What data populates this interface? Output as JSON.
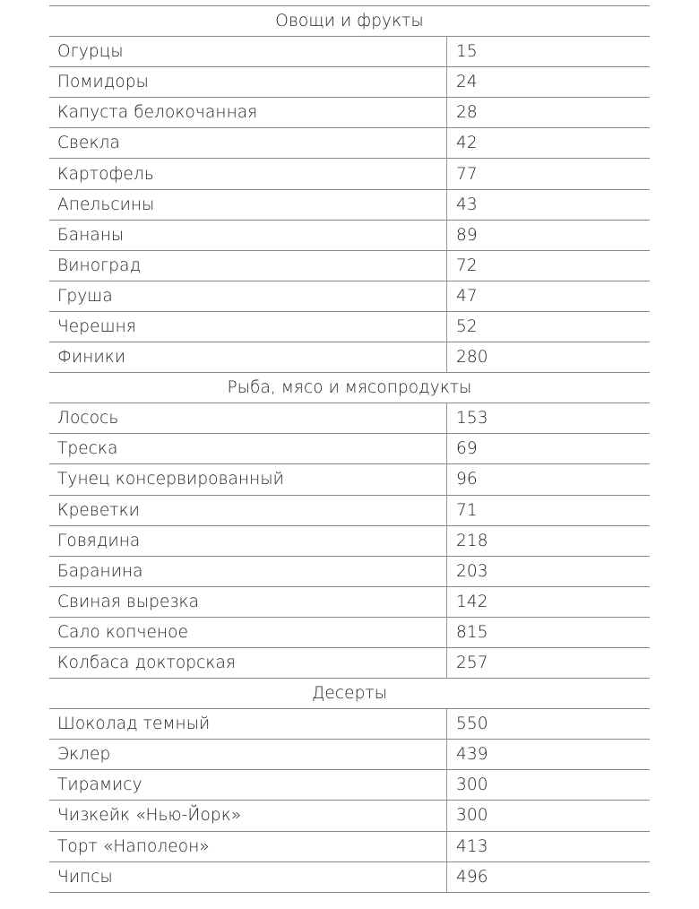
{
  "sections": [
    {
      "title": "Овощи и фрукты",
      "rows": [
        [
          "Огурцы",
          "15"
        ],
        [
          "Помидоры",
          "24"
        ],
        [
          "Капуста белокочанная",
          "28"
        ],
        [
          "Свекла",
          "42"
        ],
        [
          "Картофель",
          "77"
        ],
        [
          "Апельсины",
          "43"
        ],
        [
          "Бананы",
          "89"
        ],
        [
          "Виноград",
          "72"
        ],
        [
          "Груша",
          "47"
        ],
        [
          "Черешня",
          "52"
        ],
        [
          "Финики",
          "280"
        ]
      ]
    },
    {
      "title": "Рыба, мясо и мясопродукты",
      "rows": [
        [
          "Лосось",
          "153"
        ],
        [
          "Треска",
          "69"
        ],
        [
          "Тунец консервированный",
          "96"
        ],
        [
          "Креветки",
          "71"
        ],
        [
          "Говядина",
          "218"
        ],
        [
          "Баранина",
          "203"
        ],
        [
          "Свиная вырезка",
          "142"
        ],
        [
          "Сало копченое",
          "815"
        ],
        [
          "Колбаса докторская",
          "257"
        ]
      ]
    },
    {
      "title": "Десерты",
      "rows": [
        [
          "Шоколад темный",
          "550"
        ],
        [
          "Эклер",
          "439"
        ],
        [
          "Тирамису",
          "300"
        ],
        [
          "Чизкейк «Нью-Йорк»",
          "300"
        ],
        [
          "Торт «Наполеон»",
          "413"
        ],
        [
          "Чипсы",
          "496"
        ]
      ]
    }
  ]
}
